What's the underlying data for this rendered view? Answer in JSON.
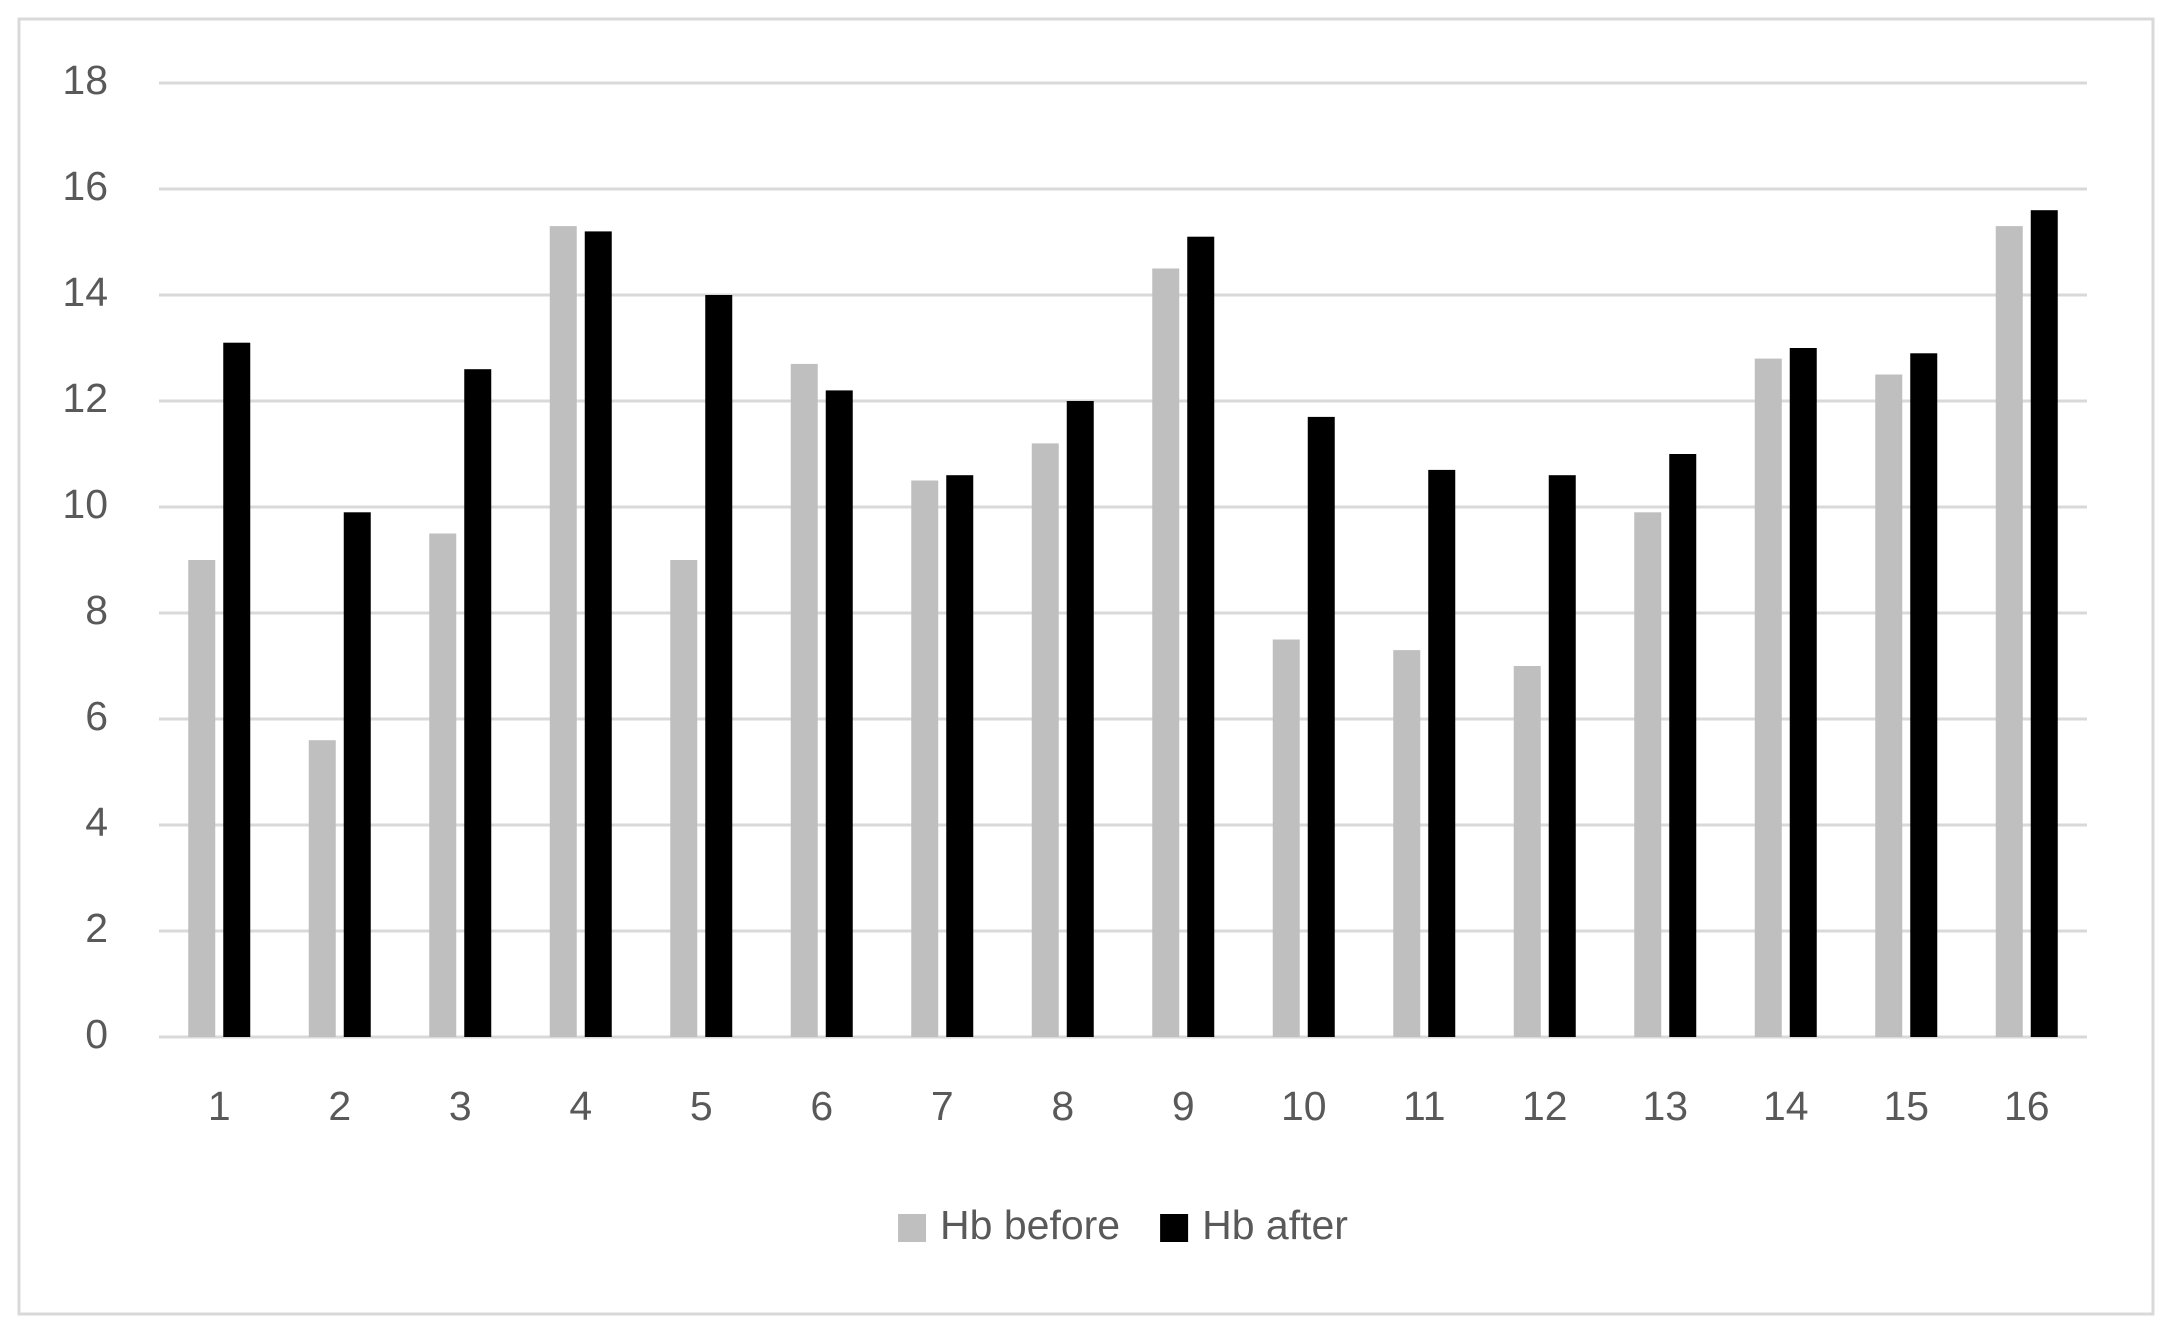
{
  "chart_data": {
    "type": "bar",
    "categories": [
      "1",
      "2",
      "3",
      "4",
      "5",
      "6",
      "7",
      "8",
      "9",
      "10",
      "11",
      "12",
      "13",
      "14",
      "15",
      "16"
    ],
    "series": [
      {
        "name": "Hb before",
        "color": "#bfbfbf",
        "values": [
          9,
          5.6,
          9.5,
          15.3,
          9,
          12.7,
          10.5,
          11.2,
          14.5,
          7.5,
          7.3,
          7,
          9.9,
          12.8,
          12.5,
          15.3
        ]
      },
      {
        "name": "Hb after",
        "color": "#000000",
        "values": [
          13.1,
          9.9,
          12.6,
          15.2,
          14,
          12.2,
          10.6,
          12,
          15.1,
          11.7,
          10.7,
          10.6,
          11,
          13,
          12.9,
          15.6
        ]
      }
    ],
    "ylim": [
      0,
      18
    ],
    "yticks": [
      0,
      2,
      4,
      6,
      8,
      10,
      12,
      14,
      16,
      18
    ],
    "grid": true,
    "legend": "bottom"
  }
}
